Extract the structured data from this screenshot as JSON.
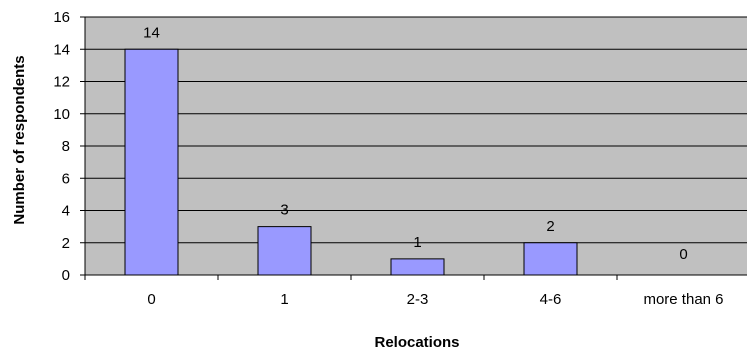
{
  "chart_data": {
    "type": "bar",
    "title": "",
    "xlabel": "Relocations",
    "ylabel": "Number of respondents",
    "categories": [
      "0",
      "1",
      "2-3",
      "4-6",
      "more than 6"
    ],
    "values": [
      14,
      3,
      1,
      2,
      0
    ],
    "data_labels": [
      "14",
      "3",
      "1",
      "2",
      "0"
    ],
    "ylim": [
      0,
      16
    ],
    "yticks": [
      0,
      2,
      4,
      6,
      8,
      10,
      12,
      14,
      16
    ],
    "grid": true,
    "legend": "none",
    "colors": {
      "bar_fill": "#9999ff",
      "plot_background": "#c0c0c0",
      "gridline": "#000000"
    }
  }
}
